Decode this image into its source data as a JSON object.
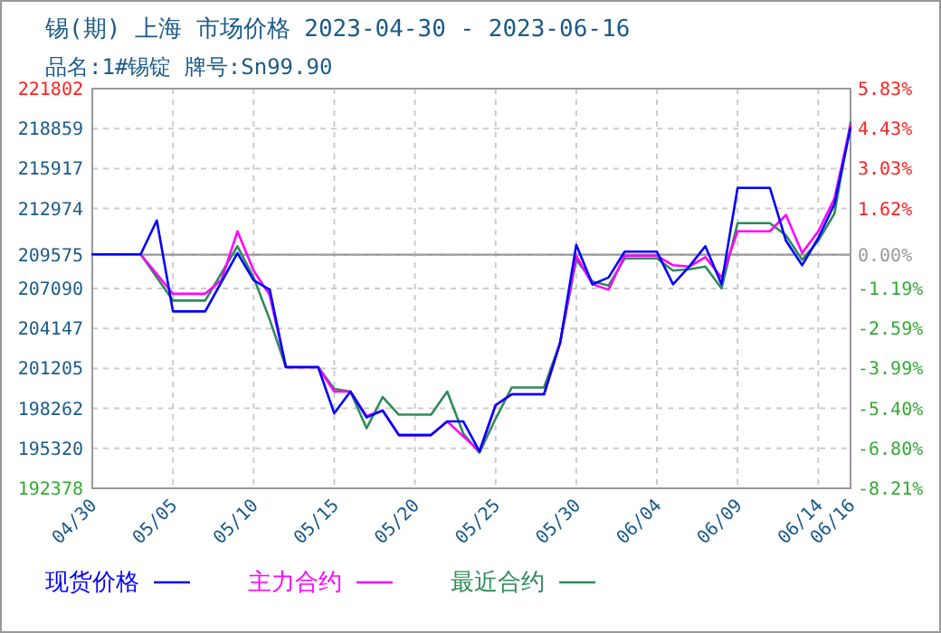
{
  "chart_data": {
    "type": "line",
    "title": "锡(期) 上海 市场价格 2023-04-30 - 2023-06-16",
    "subtitle": "品名:1#锡锭 牌号:Sn99.90",
    "xlim": [
      "2023-04-30",
      "2023-06-16"
    ],
    "xticks": [
      {
        "value": "2023-04-30",
        "label": "04/30"
      },
      {
        "value": "2023-05-05",
        "label": "05/05"
      },
      {
        "value": "2023-05-10",
        "label": "05/10"
      },
      {
        "value": "2023-05-15",
        "label": "05/15"
      },
      {
        "value": "2023-05-20",
        "label": "05/20"
      },
      {
        "value": "2023-05-25",
        "label": "05/25"
      },
      {
        "value": "2023-05-30",
        "label": "05/30"
      },
      {
        "value": "2023-06-04",
        "label": "06/04"
      },
      {
        "value": "2023-06-09",
        "label": "06/09"
      },
      {
        "value": "2023-06-14",
        "label": "06/14"
      },
      {
        "value": "2023-06-16",
        "label": "06/16"
      }
    ],
    "ylim": [
      192378,
      221802
    ],
    "yticks": [
      192378,
      195320,
      198262,
      201205,
      204147,
      207090,
      209575,
      212974,
      215917,
      218859,
      221802
    ],
    "y2lim": [
      -8.21,
      5.83
    ],
    "y2ticks": [
      {
        "value": -8.21,
        "label": "-8.21%"
      },
      {
        "value": -6.8,
        "label": "-6.80%"
      },
      {
        "value": -5.4,
        "label": "-5.40%"
      },
      {
        "value": -3.99,
        "label": "-3.99%"
      },
      {
        "value": -2.59,
        "label": "-2.59%"
      },
      {
        "value": -1.19,
        "label": "-1.19%"
      },
      {
        "value": 0,
        "label": "0.00%"
      },
      {
        "value": 1.62,
        "label": "1.62%"
      },
      {
        "value": 3.03,
        "label": "3.03%"
      },
      {
        "value": 4.43,
        "label": "4.43%"
      },
      {
        "value": 5.83,
        "label": "5.83%"
      }
    ],
    "grid": true,
    "legend": "bottom",
    "marker": "none",
    "line_style": "solid",
    "ref_lines": [
      {
        "axis": "y",
        "value": 209575,
        "color": "#999999"
      }
    ],
    "series": [
      {
        "name": "现货价格",
        "color": "#0000ff",
        "x": [
          "2023-04-30",
          "2023-05-03",
          "2023-05-04",
          "2023-05-05",
          "2023-05-07",
          "2023-05-09",
          "2023-05-10",
          "2023-05-11",
          "2023-05-12",
          "2023-05-14",
          "2023-05-15",
          "2023-05-16",
          "2023-05-17",
          "2023-05-18",
          "2023-05-19",
          "2023-05-21",
          "2023-05-22",
          "2023-05-23",
          "2023-05-24",
          "2023-05-25",
          "2023-05-26",
          "2023-05-28",
          "2023-05-29",
          "2023-05-30",
          "2023-05-31",
          "2023-06-01",
          "2023-06-02",
          "2023-06-04",
          "2023-06-05",
          "2023-06-06",
          "2023-06-07",
          "2023-06-08",
          "2023-06-09",
          "2023-06-11",
          "2023-06-12",
          "2023-06-13",
          "2023-06-14",
          "2023-06-15",
          "2023-06-16"
        ],
        "values": [
          209600,
          209600,
          212100,
          205400,
          205400,
          209700,
          207700,
          207000,
          201300,
          201300,
          197900,
          199500,
          197600,
          198100,
          196300,
          196300,
          197300,
          197300,
          195100,
          198500,
          199300,
          199300,
          203100,
          210300,
          207400,
          207900,
          209800,
          209800,
          207400,
          208700,
          210200,
          207400,
          214500,
          214500,
          210600,
          208800,
          210800,
          213300,
          218900
        ]
      },
      {
        "name": "主力合约",
        "color": "#ff00ff",
        "x": [
          "2023-05-03",
          "2023-05-05",
          "2023-05-07",
          "2023-05-08",
          "2023-05-09",
          "2023-05-10",
          "2023-05-11",
          "2023-05-12",
          "2023-05-14",
          "2023-05-15",
          "2023-05-16",
          "2023-05-17",
          "2023-05-18",
          "2023-05-19",
          "2023-05-21",
          "2023-05-22",
          "2023-05-23",
          "2023-05-24",
          "2023-05-25",
          "2023-05-26",
          "2023-05-28",
          "2023-05-29",
          "2023-05-30",
          "2023-05-31",
          "2023-06-01",
          "2023-06-02",
          "2023-06-04",
          "2023-06-05",
          "2023-06-06",
          "2023-06-07",
          "2023-06-08",
          "2023-06-09",
          "2023-06-11",
          "2023-06-12",
          "2023-06-13",
          "2023-06-14",
          "2023-06-15",
          "2023-06-16"
        ],
        "values": [
          209600,
          206700,
          206700,
          207700,
          211300,
          208400,
          206600,
          201300,
          201300,
          199500,
          199500,
          197700,
          198100,
          196300,
          196300,
          197300,
          196200,
          195100,
          198500,
          199300,
          199300,
          203100,
          209500,
          207400,
          207000,
          209500,
          209500,
          208800,
          208700,
          209400,
          207900,
          211300,
          211300,
          212500,
          209700,
          211300,
          213700,
          219100
        ]
      },
      {
        "name": "最近合约",
        "color": "#2e8b57",
        "x": [
          "2023-05-03",
          "2023-05-05",
          "2023-05-07",
          "2023-05-09",
          "2023-05-10",
          "2023-05-11",
          "2023-05-12",
          "2023-05-14",
          "2023-05-15",
          "2023-05-16",
          "2023-05-17",
          "2023-05-18",
          "2023-05-19",
          "2023-05-21",
          "2023-05-22",
          "2023-05-23",
          "2023-05-24",
          "2023-05-25",
          "2023-05-26",
          "2023-05-28",
          "2023-05-29",
          "2023-05-30",
          "2023-05-31",
          "2023-06-01",
          "2023-06-02",
          "2023-06-04",
          "2023-06-05",
          "2023-06-06",
          "2023-06-07",
          "2023-06-08",
          "2023-06-09",
          "2023-06-11",
          "2023-06-12",
          "2023-06-13",
          "2023-06-14",
          "2023-06-15",
          "2023-06-16"
        ],
        "values": [
          209600,
          206200,
          206200,
          210200,
          207900,
          204800,
          201300,
          201300,
          199700,
          199500,
          196800,
          199100,
          197800,
          197800,
          199500,
          196400,
          195000,
          197500,
          199800,
          199800,
          203100,
          209200,
          207600,
          207300,
          209300,
          209300,
          208400,
          208500,
          208700,
          207100,
          211900,
          211900,
          211000,
          209200,
          210600,
          212600,
          219300
        ]
      }
    ]
  }
}
